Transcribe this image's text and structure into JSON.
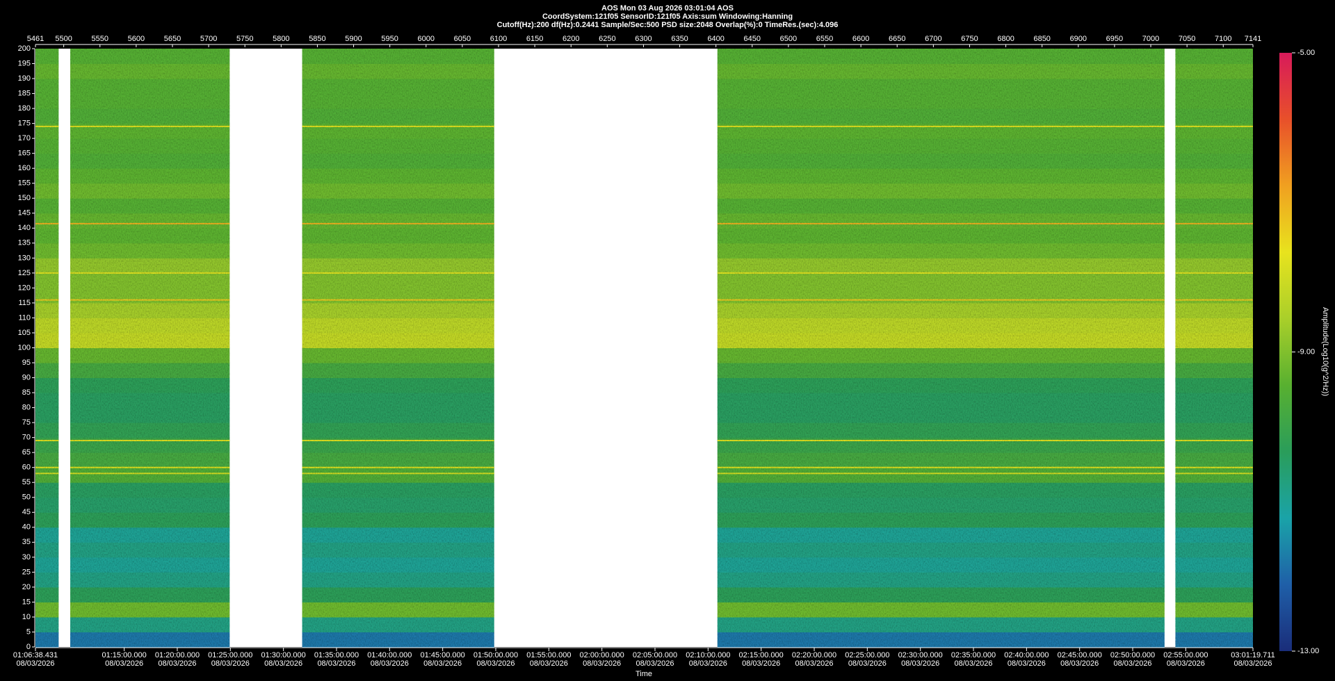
{
  "chart_data": {
    "type": "spectrogram",
    "title": "AOS  Mon 03 Aug 2026 03:01:04  AOS",
    "info_lines": [
      "CoordSystem:121f05   SensorID:121f05    Axis:sum     Windowing:Hanning",
      "Cutoff(Hz):200     df(Hz):0.2441     Sample/Sec:500     PSD size:2048     Overlap(%):0     TimeRes.(sec):4.096"
    ],
    "x2_label": "Time",
    "colorbar_label": "Amplitude(Log10(g^2/Hz))",
    "xlim": [
      5461,
      7141
    ],
    "xticks": [
      5461,
      5500,
      5550,
      5600,
      5650,
      5700,
      5750,
      5800,
      5850,
      5900,
      5950,
      6000,
      6050,
      6100,
      6150,
      6200,
      6250,
      6300,
      6350,
      6400,
      6450,
      6500,
      6550,
      6600,
      6650,
      6700,
      6750,
      6800,
      6850,
      6900,
      6950,
      7000,
      7050,
      7100,
      7141
    ],
    "x2lim": [
      3998.431,
      10879.711
    ],
    "x2ticks": [
      {
        "value": 3998.431,
        "label": "01:06:38.431",
        "date": "08/03/2026"
      },
      {
        "value": 4500,
        "label": "01:15:00.000",
        "date": "08/03/2026"
      },
      {
        "value": 4800,
        "label": "01:20:00.000",
        "date": "08/03/2026"
      },
      {
        "value": 5100,
        "label": "01:25:00.000",
        "date": "08/03/2026"
      },
      {
        "value": 5400,
        "label": "01:30:00.000",
        "date": "08/03/2026"
      },
      {
        "value": 5700,
        "label": "01:35:00.000",
        "date": "08/03/2026"
      },
      {
        "value": 6000,
        "label": "01:40:00.000",
        "date": "08/03/2026"
      },
      {
        "value": 6300,
        "label": "01:45:00.000",
        "date": "08/03/2026"
      },
      {
        "value": 6600,
        "label": "01:50:00.000",
        "date": "08/03/2026"
      },
      {
        "value": 6900,
        "label": "01:55:00.000",
        "date": "08/03/2026"
      },
      {
        "value": 7200,
        "label": "02:00:00.000",
        "date": "08/03/2026"
      },
      {
        "value": 7500,
        "label": "02:05:00.000",
        "date": "08/03/2026"
      },
      {
        "value": 7800,
        "label": "02:10:00.000",
        "date": "08/03/2026"
      },
      {
        "value": 8100,
        "label": "02:15:00.000",
        "date": "08/03/2026"
      },
      {
        "value": 8400,
        "label": "02:20:00.000",
        "date": "08/03/2026"
      },
      {
        "value": 8700,
        "label": "02:25:00.000",
        "date": "08/03/2026"
      },
      {
        "value": 9000,
        "label": "02:30:00.000",
        "date": "08/03/2026"
      },
      {
        "value": 9300,
        "label": "02:35:00.000",
        "date": "08/03/2026"
      },
      {
        "value": 9600,
        "label": "02:40:00.000",
        "date": "08/03/2026"
      },
      {
        "value": 9900,
        "label": "02:45:00.000",
        "date": "08/03/2026"
      },
      {
        "value": 10200,
        "label": "02:50:00.000",
        "date": "08/03/2026"
      },
      {
        "value": 10500,
        "label": "02:55:00.000",
        "date": "08/03/2026"
      },
      {
        "value": 10879.711,
        "label": "03:01:19.711",
        "date": "08/03/2026"
      }
    ],
    "ylim": [
      0,
      200
    ],
    "yticks": [
      0,
      5,
      10,
      15,
      20,
      25,
      30,
      35,
      40,
      45,
      50,
      55,
      60,
      65,
      70,
      75,
      80,
      85,
      90,
      95,
      100,
      105,
      110,
      115,
      120,
      125,
      130,
      135,
      140,
      145,
      150,
      155,
      160,
      165,
      170,
      175,
      180,
      185,
      190,
      195,
      200
    ],
    "segments": [
      [
        5461,
        5493
      ],
      [
        5509,
        5729
      ],
      [
        5829,
        6094
      ],
      [
        6402,
        7019
      ],
      [
        7034,
        7141
      ]
    ],
    "frequency_bins": [
      0,
      5,
      10,
      15,
      20,
      25,
      30,
      35,
      40,
      45,
      50,
      55,
      60,
      65,
      70,
      75,
      80,
      85,
      90,
      95,
      100,
      105,
      110,
      115,
      120,
      125,
      130,
      135,
      140,
      145,
      150,
      155,
      160,
      165,
      170,
      175,
      180,
      185,
      190,
      195,
      200
    ],
    "amplitude": [
      -11.8,
      -10.8,
      -9.2,
      -10.3,
      -10.8,
      -11.0,
      -10.8,
      -11.0,
      -10.3,
      -10.5,
      -10.4,
      -9.6,
      -9.8,
      -10.0,
      -10.2,
      -10.4,
      -10.4,
      -10.3,
      -9.8,
      -9.3,
      -8.2,
      -8.3,
      -8.6,
      -9.0,
      -9.0,
      -8.8,
      -9.2,
      -9.4,
      -9.3,
      -9.5,
      -9.2,
      -9.4,
      -9.6,
      -9.5,
      -9.4,
      -9.6,
      -9.5,
      -9.5,
      -9.3,
      -9.5
    ],
    "peaks": [
      {
        "frequency": 141.5,
        "amplitude": -7.0
      },
      {
        "frequency": 174,
        "amplitude": -7.8
      },
      {
        "frequency": 116,
        "amplitude": -7.3
      },
      {
        "frequency": 125,
        "amplitude": -7.8
      },
      {
        "frequency": 69,
        "amplitude": -7.8
      },
      {
        "frequency": 60,
        "amplitude": -7.8
      },
      {
        "frequency": 58,
        "amplitude": -8.0
      }
    ],
    "clim": [
      -13,
      -5
    ],
    "cticks": [
      {
        "value": -5,
        "label": "-5.00"
      },
      {
        "value": -9,
        "label": "-9.00"
      },
      {
        "value": -13,
        "label": "-13.00"
      }
    ],
    "colormap": [
      "#1a2d7a",
      "#1f5fa8",
      "#1aa3a8",
      "#2a9d5a",
      "#58b030",
      "#a9cf2a",
      "#e8e31e",
      "#f0a020",
      "#e8502a",
      "#d81a5a"
    ]
  }
}
